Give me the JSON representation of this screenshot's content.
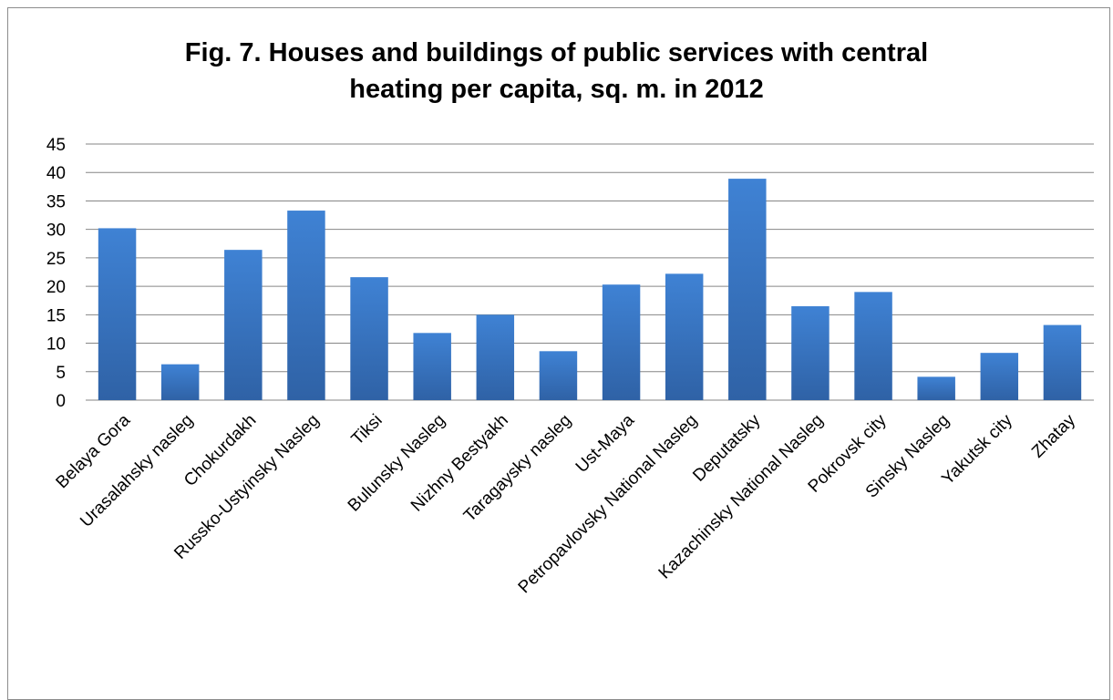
{
  "chart_data": {
    "type": "bar",
    "title": "Fig. 7. Houses and buildings of public services with central heating per capita, sq. m. in 2012",
    "title_lines": [
      "Fig. 7. Houses and buildings of public services with central",
      "heating per capita, sq. m. in 2012"
    ],
    "categories": [
      "Belaya Gora",
      "Urasalahsky nasleg",
      "Chokurdakh",
      "Russko-Ustyinsky Nasleg",
      "Tiksi",
      "Bulunsky Nasleg",
      "Nizhny Bestyakh",
      "Taragaysky nasleg",
      "Ust-Maya",
      "Petropavlovsky National Nasleg",
      "Deputatsky",
      "Kazachinsky National Nasleg",
      "Pokrovsk city",
      "Sinsky Nasleg",
      "Yakutsk city",
      "Zhatay"
    ],
    "values": [
      30.2,
      6.3,
      26.4,
      33.3,
      21.6,
      11.8,
      15.0,
      8.6,
      20.3,
      22.2,
      38.9,
      16.5,
      19.0,
      4.1,
      8.3,
      13.2
    ],
    "ylim": [
      0,
      45
    ],
    "yticks": [
      0,
      5,
      10,
      15,
      20,
      25,
      30,
      35,
      40,
      45
    ],
    "xlabel": "",
    "ylabel": "",
    "grid": true,
    "legend": "none",
    "bar_color": "#3a78c6"
  }
}
